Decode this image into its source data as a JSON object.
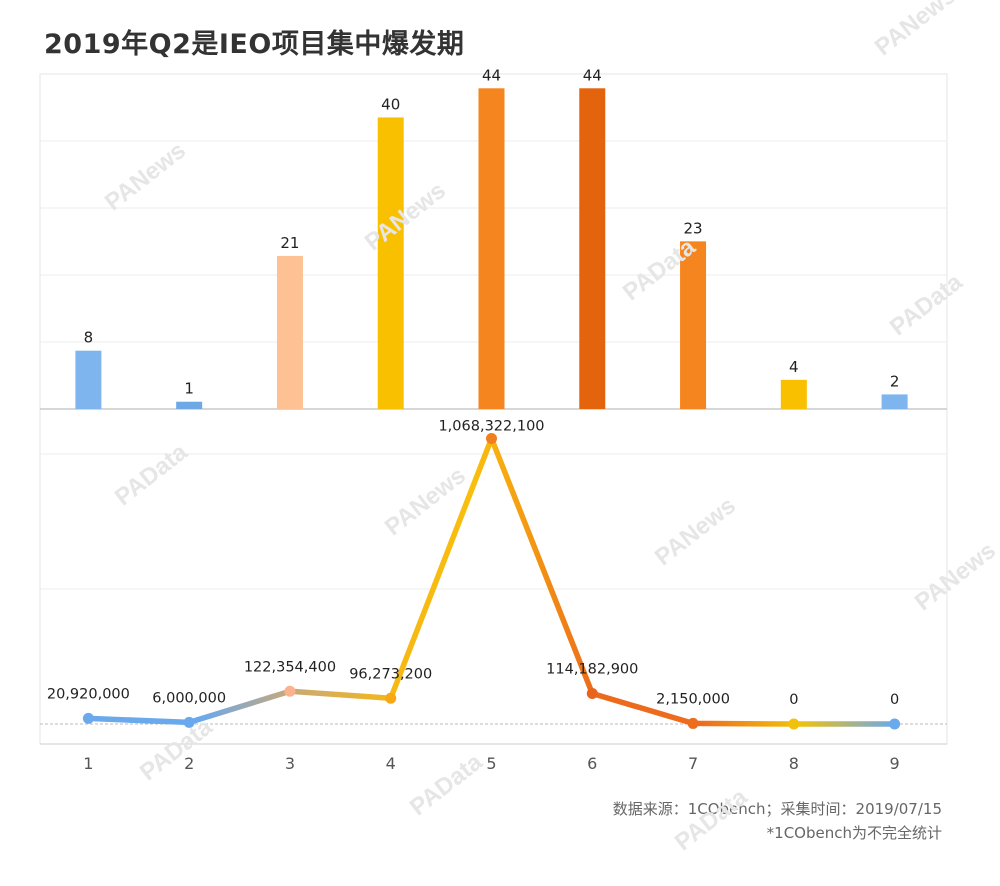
{
  "title": "2019年Q2是IEO项目集中爆发期",
  "footer": {
    "source": "数据来源：1CObench；采集时间：2019/07/15",
    "note": "*1CObench为不完全统计"
  },
  "watermark": {
    "a": "PANews",
    "b": "PAData"
  },
  "chart_data": [
    {
      "type": "bar",
      "categories": [
        "1",
        "2",
        "3",
        "4",
        "5",
        "6",
        "7",
        "8",
        "9"
      ],
      "values": [
        8,
        1,
        21,
        40,
        44,
        44,
        23,
        4,
        2
      ],
      "colors": [
        "#7eb5ee",
        "#6fa8e6",
        "#fdc193",
        "#f9c000",
        "#f5851f",
        "#e4640e",
        "#f5861f",
        "#f9c000",
        "#7eb5ee"
      ],
      "ylim": [
        0,
        45
      ],
      "grid": true
    },
    {
      "type": "line",
      "categories": [
        "1",
        "2",
        "3",
        "4",
        "5",
        "6",
        "7",
        "8",
        "9"
      ],
      "values": [
        20920000,
        6000000,
        122354400,
        96273200,
        1068322100,
        114182900,
        2150000,
        0,
        0
      ],
      "labels": [
        "20,920,000",
        "6,000,000",
        "122,354,400",
        "96,273,200",
        "1,068,322,100",
        "114,182,900",
        "2,150,000",
        "0",
        "0"
      ],
      "point_colors": [
        "#6aa9ec",
        "#6aa9ec",
        "#fbb38e",
        "#f6a815",
        "#f07f1e",
        "#e8641c",
        "#ee6c1e",
        "#f2c10c",
        "#6aa9ec"
      ],
      "ylim": [
        -11000000,
        1100000000
      ],
      "grid": true
    }
  ]
}
